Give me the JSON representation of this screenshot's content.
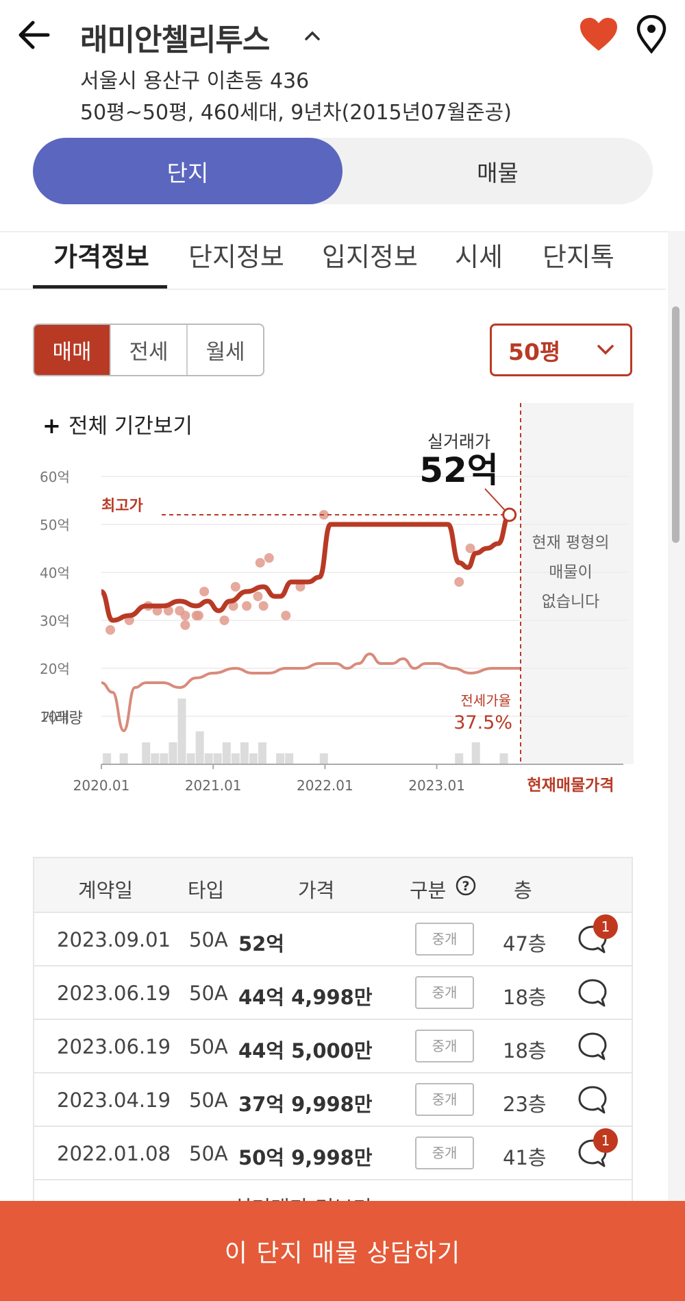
{
  "header": {
    "title": "래미안첼리투스",
    "address": "서울시 용산구 이촌동 436",
    "info": "50평~50평, 460세대, 9년차(2015년07월준공)"
  },
  "segments": [
    "단지",
    "매물"
  ],
  "tabs": [
    "가격정보",
    "단지정보",
    "입지정보",
    "시세",
    "단지톡"
  ],
  "deal_types": [
    "매매",
    "전세",
    "월세"
  ],
  "size_select": "50평",
  "chart_data": {
    "type": "line",
    "expand_label": "전체 기간보기",
    "x_ticks": [
      "2020.01",
      "2021.01",
      "2022.01",
      "2023.01"
    ],
    "y_ticks": [
      "60억",
      "50억",
      "40억",
      "30억",
      "20억",
      "10억"
    ],
    "ylim": [
      0,
      60
    ],
    "volume_label": "거래량",
    "high_label": "최고가",
    "high_value": 52,
    "latest_label": "실거래가",
    "latest_value_text": "52억",
    "jeonse_ratio_label": "전세가율",
    "jeonse_ratio_value": "37.5%",
    "current_label": "현재매물가격",
    "no_listing_text": [
      "현재 평형의",
      "매물이",
      "없습니다"
    ],
    "series": [
      {
        "name": "매매",
        "color": "#b83a25",
        "x": [
          2020.0,
          2020.1,
          2020.25,
          2020.4,
          2020.55,
          2020.7,
          2020.85,
          2020.95,
          2021.05,
          2021.15,
          2021.3,
          2021.45,
          2021.55,
          2021.6,
          2021.7,
          2021.85,
          2021.95,
          2022.05,
          2022.2,
          2022.5,
          2022.8,
          2023.1,
          2023.2,
          2023.28,
          2023.35,
          2023.45,
          2023.55,
          2023.65
        ],
        "y": [
          36,
          30,
          31,
          33,
          33,
          34,
          33,
          34,
          32,
          34,
          36,
          37,
          35,
          35,
          38,
          38,
          39,
          50,
          50,
          50,
          50,
          50,
          42,
          41,
          44,
          45,
          46,
          52
        ]
      },
      {
        "name": "전세",
        "color": "#d98b7b",
        "x": [
          2020.0,
          2020.1,
          2020.2,
          2020.3,
          2020.4,
          2020.55,
          2020.7,
          2020.85,
          2021.0,
          2021.2,
          2021.35,
          2021.5,
          2021.65,
          2021.8,
          2021.95,
          2022.1,
          2022.2,
          2022.3,
          2022.4,
          2022.5,
          2022.6,
          2022.7,
          2022.8,
          2022.9,
          2023.0,
          2023.15,
          2023.3,
          2023.5,
          2023.75
        ],
        "y": [
          17,
          15,
          7,
          16,
          17,
          17,
          16,
          18,
          19,
          20,
          19,
          19,
          20,
          20,
          21,
          21,
          20,
          21,
          23,
          21,
          21,
          22,
          20,
          21,
          21,
          20,
          19,
          20,
          20
        ]
      }
    ],
    "scatter": {
      "x": [
        2020.08,
        2020.25,
        2020.42,
        2020.5,
        2020.6,
        2020.7,
        2020.75,
        2020.75,
        2020.85,
        2020.87,
        2020.92,
        2021.1,
        2021.18,
        2021.2,
        2021.3,
        2021.4,
        2021.42,
        2021.45,
        2021.5,
        2021.65,
        2021.78,
        2021.99,
        2023.2,
        2023.3
      ],
      "y": [
        28,
        30,
        33,
        32,
        32,
        32,
        31,
        29,
        31,
        31,
        36,
        30,
        33,
        37,
        33,
        35,
        42,
        33,
        43,
        31,
        37,
        52,
        38,
        45
      ]
    },
    "volume": {
      "x": [
        2020.05,
        2020.2,
        2020.4,
        2020.48,
        2020.56,
        2020.64,
        2020.72,
        2020.8,
        2020.88,
        2020.96,
        2021.04,
        2021.12,
        2021.2,
        2021.28,
        2021.36,
        2021.44,
        2021.6,
        2021.68,
        2021.99,
        2023.2,
        2023.35,
        2023.6
      ],
      "h": [
        1,
        1,
        2,
        1,
        1,
        2,
        6,
        1,
        3,
        1,
        1,
        2,
        1,
        2,
        1,
        2,
        1,
        1,
        1,
        1,
        2,
        1
      ]
    }
  },
  "table": {
    "headers": {
      "date": "계약일",
      "type": "타입",
      "price": "가격",
      "kind": "구분",
      "floor": "층"
    },
    "rows": [
      {
        "date": "2023.09.01",
        "type": "50A",
        "price": "52억",
        "kind": "중개",
        "floor": "47층",
        "badge": "1"
      },
      {
        "date": "2023.06.19",
        "type": "50A",
        "price": "44억 4,998만",
        "kind": "중개",
        "floor": "18층"
      },
      {
        "date": "2023.06.19",
        "type": "50A",
        "price": "44억 5,000만",
        "kind": "중개",
        "floor": "18층"
      },
      {
        "date": "2023.04.19",
        "type": "50A",
        "price": "37억 9,998만",
        "kind": "중개",
        "floor": "23층"
      },
      {
        "date": "2022.01.08",
        "type": "50A",
        "price": "50억 9,998만",
        "kind": "중개",
        "floor": "41층",
        "badge": "1"
      }
    ]
  },
  "more_label": "실거래가 더보기",
  "cta_label": "이 단지 매물 상담하기",
  "colors": {
    "accent": "#b83a25",
    "segment": "#5b66bf",
    "cta": "#e55a38"
  }
}
